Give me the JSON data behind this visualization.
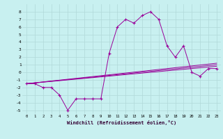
{
  "xlabel": "Windchill (Refroidissement éolien,°C)",
  "ylabel": "",
  "bg_color": "#c8f0f0",
  "line_color": "#990099",
  "grid_color": "#b0d8d8",
  "x_ticks": [
    0,
    1,
    2,
    3,
    4,
    5,
    6,
    7,
    8,
    9,
    10,
    11,
    12,
    13,
    14,
    15,
    16,
    17,
    18,
    19,
    20,
    21,
    22,
    23
  ],
  "ylim": [
    -5.5,
    9.0
  ],
  "xlim": [
    -0.5,
    23.5
  ],
  "y_ticks": [
    -5,
    -4,
    -3,
    -2,
    -1,
    0,
    1,
    2,
    3,
    4,
    5,
    6,
    7,
    8
  ],
  "series": [
    {
      "x": [
        0,
        1,
        2,
        3,
        4,
        5,
        6,
        7,
        8,
        9,
        10,
        11,
        12,
        13,
        14,
        15,
        16,
        17,
        18,
        19,
        20,
        21,
        22,
        23
      ],
      "y": [
        -1.5,
        -1.5,
        -2.0,
        -2.0,
        -3.0,
        -5.0,
        -3.5,
        -3.5,
        -3.5,
        -3.5,
        2.5,
        6.0,
        7.0,
        6.5,
        7.5,
        8.0,
        7.0,
        3.5,
        2.0,
        3.5,
        0.0,
        -0.5,
        0.5,
        0.5
      ],
      "marker": "+"
    },
    {
      "x": [
        0,
        23
      ],
      "y": [
        -1.5,
        1.0
      ],
      "marker": null
    },
    {
      "x": [
        0,
        23
      ],
      "y": [
        -1.5,
        1.2
      ],
      "marker": null
    },
    {
      "x": [
        0,
        23
      ],
      "y": [
        -1.5,
        0.8
      ],
      "marker": null
    }
  ]
}
